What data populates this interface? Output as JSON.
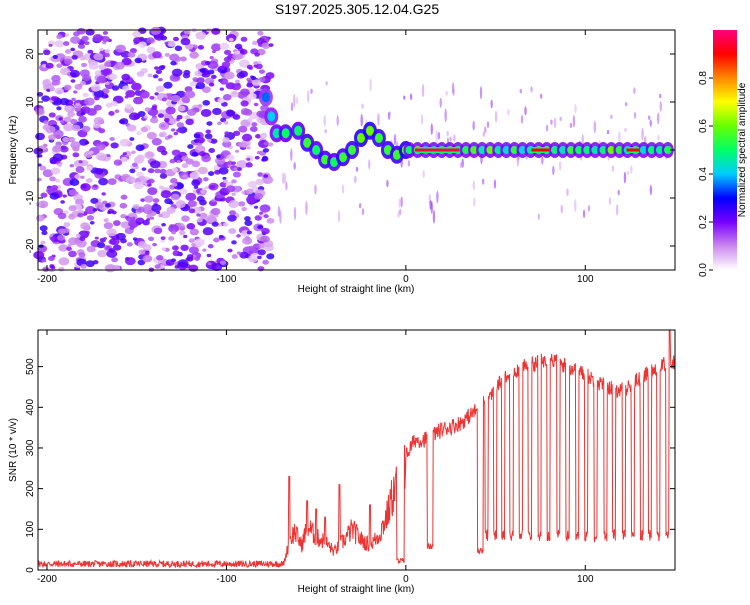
{
  "figure": {
    "title": "S197.2025.305.12.04.G25"
  },
  "chart_data": [
    {
      "type": "heatmap",
      "name": "spectrogram",
      "xlabel": "Height of straight line (km)",
      "ylabel": "Frequency (Hz)",
      "xlim": [
        -205,
        150
      ],
      "ylim": [
        -25,
        25
      ],
      "xticks": [
        -200,
        -100,
        0,
        100
      ],
      "yticks": [
        -20,
        -10,
        0,
        10,
        20
      ],
      "colorbar": {
        "label": "Normalized spectral amplitude",
        "range": [
          0,
          1
        ],
        "ticks": [
          "0.0",
          "0.2",
          "0.4",
          "0.6",
          "0.8"
        ],
        "colors": [
          "#ffffff",
          "#cc88ee",
          "#7700ff",
          "#0000ff",
          "#00ccff",
          "#00ff66",
          "#66ff00",
          "#ffff00",
          "#ff8800",
          "#ff0000",
          "#ff0080"
        ]
      },
      "regions": [
        {
          "x_range": [
            -205,
            -75
          ],
          "description": "broadband noise",
          "freq_range": [
            -25,
            25
          ],
          "max_amp": 0.1
        },
        {
          "x_range": [
            -75,
            0
          ],
          "description": "descending low-frequency trace",
          "freq_start": 10,
          "freq_end": 0
        },
        {
          "x_range": [
            0,
            150
          ],
          "description": "narrow line near 0 Hz",
          "freq": 0
        }
      ],
      "ridge": [
        {
          "x": -78,
          "f": 11,
          "amp": 0.35
        },
        {
          "x": -75,
          "f": 7,
          "amp": 0.4
        },
        {
          "x": -72,
          "f": 3.5,
          "amp": 0.45
        },
        {
          "x": -67,
          "f": 3.5,
          "amp": 0.5
        },
        {
          "x": -60,
          "f": 4,
          "amp": 0.5
        },
        {
          "x": -55,
          "f": 1.5,
          "amp": 0.55
        },
        {
          "x": -50,
          "f": 0,
          "amp": 0.5
        },
        {
          "x": -45,
          "f": -2,
          "amp": 0.55
        },
        {
          "x": -40,
          "f": -2.5,
          "amp": 0.5
        },
        {
          "x": -35,
          "f": -1.5,
          "amp": 0.55
        },
        {
          "x": -30,
          "f": 0,
          "amp": 0.55
        },
        {
          "x": -25,
          "f": 2.5,
          "amp": 0.6
        },
        {
          "x": -20,
          "f": 4,
          "amp": 0.6
        },
        {
          "x": -15,
          "f": 2.5,
          "amp": 0.55
        },
        {
          "x": -10,
          "f": 0,
          "amp": 0.55
        },
        {
          "x": -5,
          "f": -1,
          "amp": 0.55
        },
        {
          "x": 0,
          "f": 0,
          "amp": 0.6
        }
      ],
      "line_segments": [
        {
          "x_range": [
            5,
            30
          ],
          "f": 0,
          "amp": 0.95
        },
        {
          "x_range": [
            70,
            80
          ],
          "f": 0,
          "amp": 0.9
        },
        {
          "x_range": [
            123,
            130
          ],
          "f": 0,
          "amp": 0.9
        }
      ]
    },
    {
      "type": "line",
      "name": "snr",
      "xlabel": "Height of straight line (km)",
      "ylabel": "SNR (10 * v/v)",
      "xlim": [
        -205,
        150
      ],
      "ylim": [
        0,
        590
      ],
      "xticks": [
        -200,
        -100,
        0,
        100
      ],
      "yticks": [
        0,
        100,
        200,
        300,
        400,
        500
      ],
      "color": "#ee3333",
      "profile": [
        {
          "x": -205,
          "y": 15
        },
        {
          "x": -100,
          "y": 15
        },
        {
          "x": -68,
          "y": 15
        },
        {
          "x": -65,
          "y": 70
        },
        {
          "x": -62,
          "y": 95
        },
        {
          "x": -58,
          "y": 60
        },
        {
          "x": -55,
          "y": 110
        },
        {
          "x": -50,
          "y": 80
        },
        {
          "x": -45,
          "y": 70
        },
        {
          "x": -40,
          "y": 45
        },
        {
          "x": -35,
          "y": 70
        },
        {
          "x": -30,
          "y": 100
        },
        {
          "x": -25,
          "y": 75
        },
        {
          "x": -20,
          "y": 60
        },
        {
          "x": -15,
          "y": 85
        },
        {
          "x": -10,
          "y": 140
        },
        {
          "x": -7,
          "y": 190
        },
        {
          "x": -3,
          "y": 230
        },
        {
          "x": 0,
          "y": 280
        },
        {
          "x": 5,
          "y": 320
        },
        {
          "x": 10,
          "y": 320
        },
        {
          "x": 20,
          "y": 345
        },
        {
          "x": 30,
          "y": 360
        },
        {
          "x": 40,
          "y": 395
        },
        {
          "x": 50,
          "y": 450
        },
        {
          "x": 60,
          "y": 490
        },
        {
          "x": 70,
          "y": 505
        },
        {
          "x": 80,
          "y": 520
        },
        {
          "x": 90,
          "y": 500
        },
        {
          "x": 100,
          "y": 480
        },
        {
          "x": 110,
          "y": 455
        },
        {
          "x": 120,
          "y": 440
        },
        {
          "x": 130,
          "y": 470
        },
        {
          "x": 140,
          "y": 500
        },
        {
          "x": 150,
          "y": 510
        }
      ],
      "spikes": [
        {
          "x": -65,
          "y": 230
        },
        {
          "x": -55,
          "y": 170
        },
        {
          "x": -50,
          "y": 150
        },
        {
          "x": -45,
          "y": 130
        },
        {
          "x": -37,
          "y": 210
        },
        {
          "x": -20,
          "y": 160
        },
        {
          "x": 147,
          "y": 590
        }
      ],
      "dropouts": [
        {
          "x_range": [
            -5,
            -1
          ],
          "low": 15
        },
        {
          "x_range": [
            12,
            15
          ],
          "low": 50
        },
        {
          "x_range": [
            40,
            43
          ],
          "low": 40
        }
      ]
    }
  ]
}
